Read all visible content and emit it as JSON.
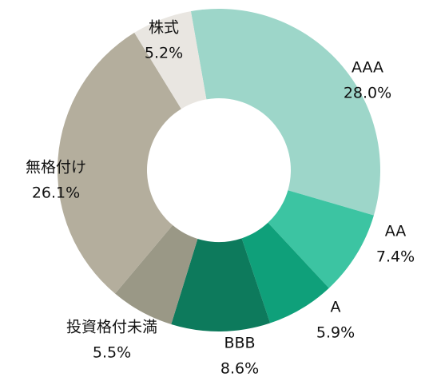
{
  "chart_data": {
    "type": "donut",
    "categories": [
      "AAA",
      "AA",
      "A",
      "BBB",
      "投資格付未満",
      "無格付け",
      "株式"
    ],
    "values": [
      28.0,
      7.4,
      5.9,
      8.6,
      5.5,
      26.1,
      5.2
    ],
    "value_labels": [
      "28.0%",
      "7.4%",
      "5.9%",
      "8.6%",
      "5.5%",
      "26.1%",
      "5.2%"
    ],
    "colors": [
      "#9dd6c9",
      "#3cc4a2",
      "#0fa07a",
      "#0d7a5c",
      "#9a9886",
      "#b4ae9d",
      "#e9e6e1"
    ]
  }
}
